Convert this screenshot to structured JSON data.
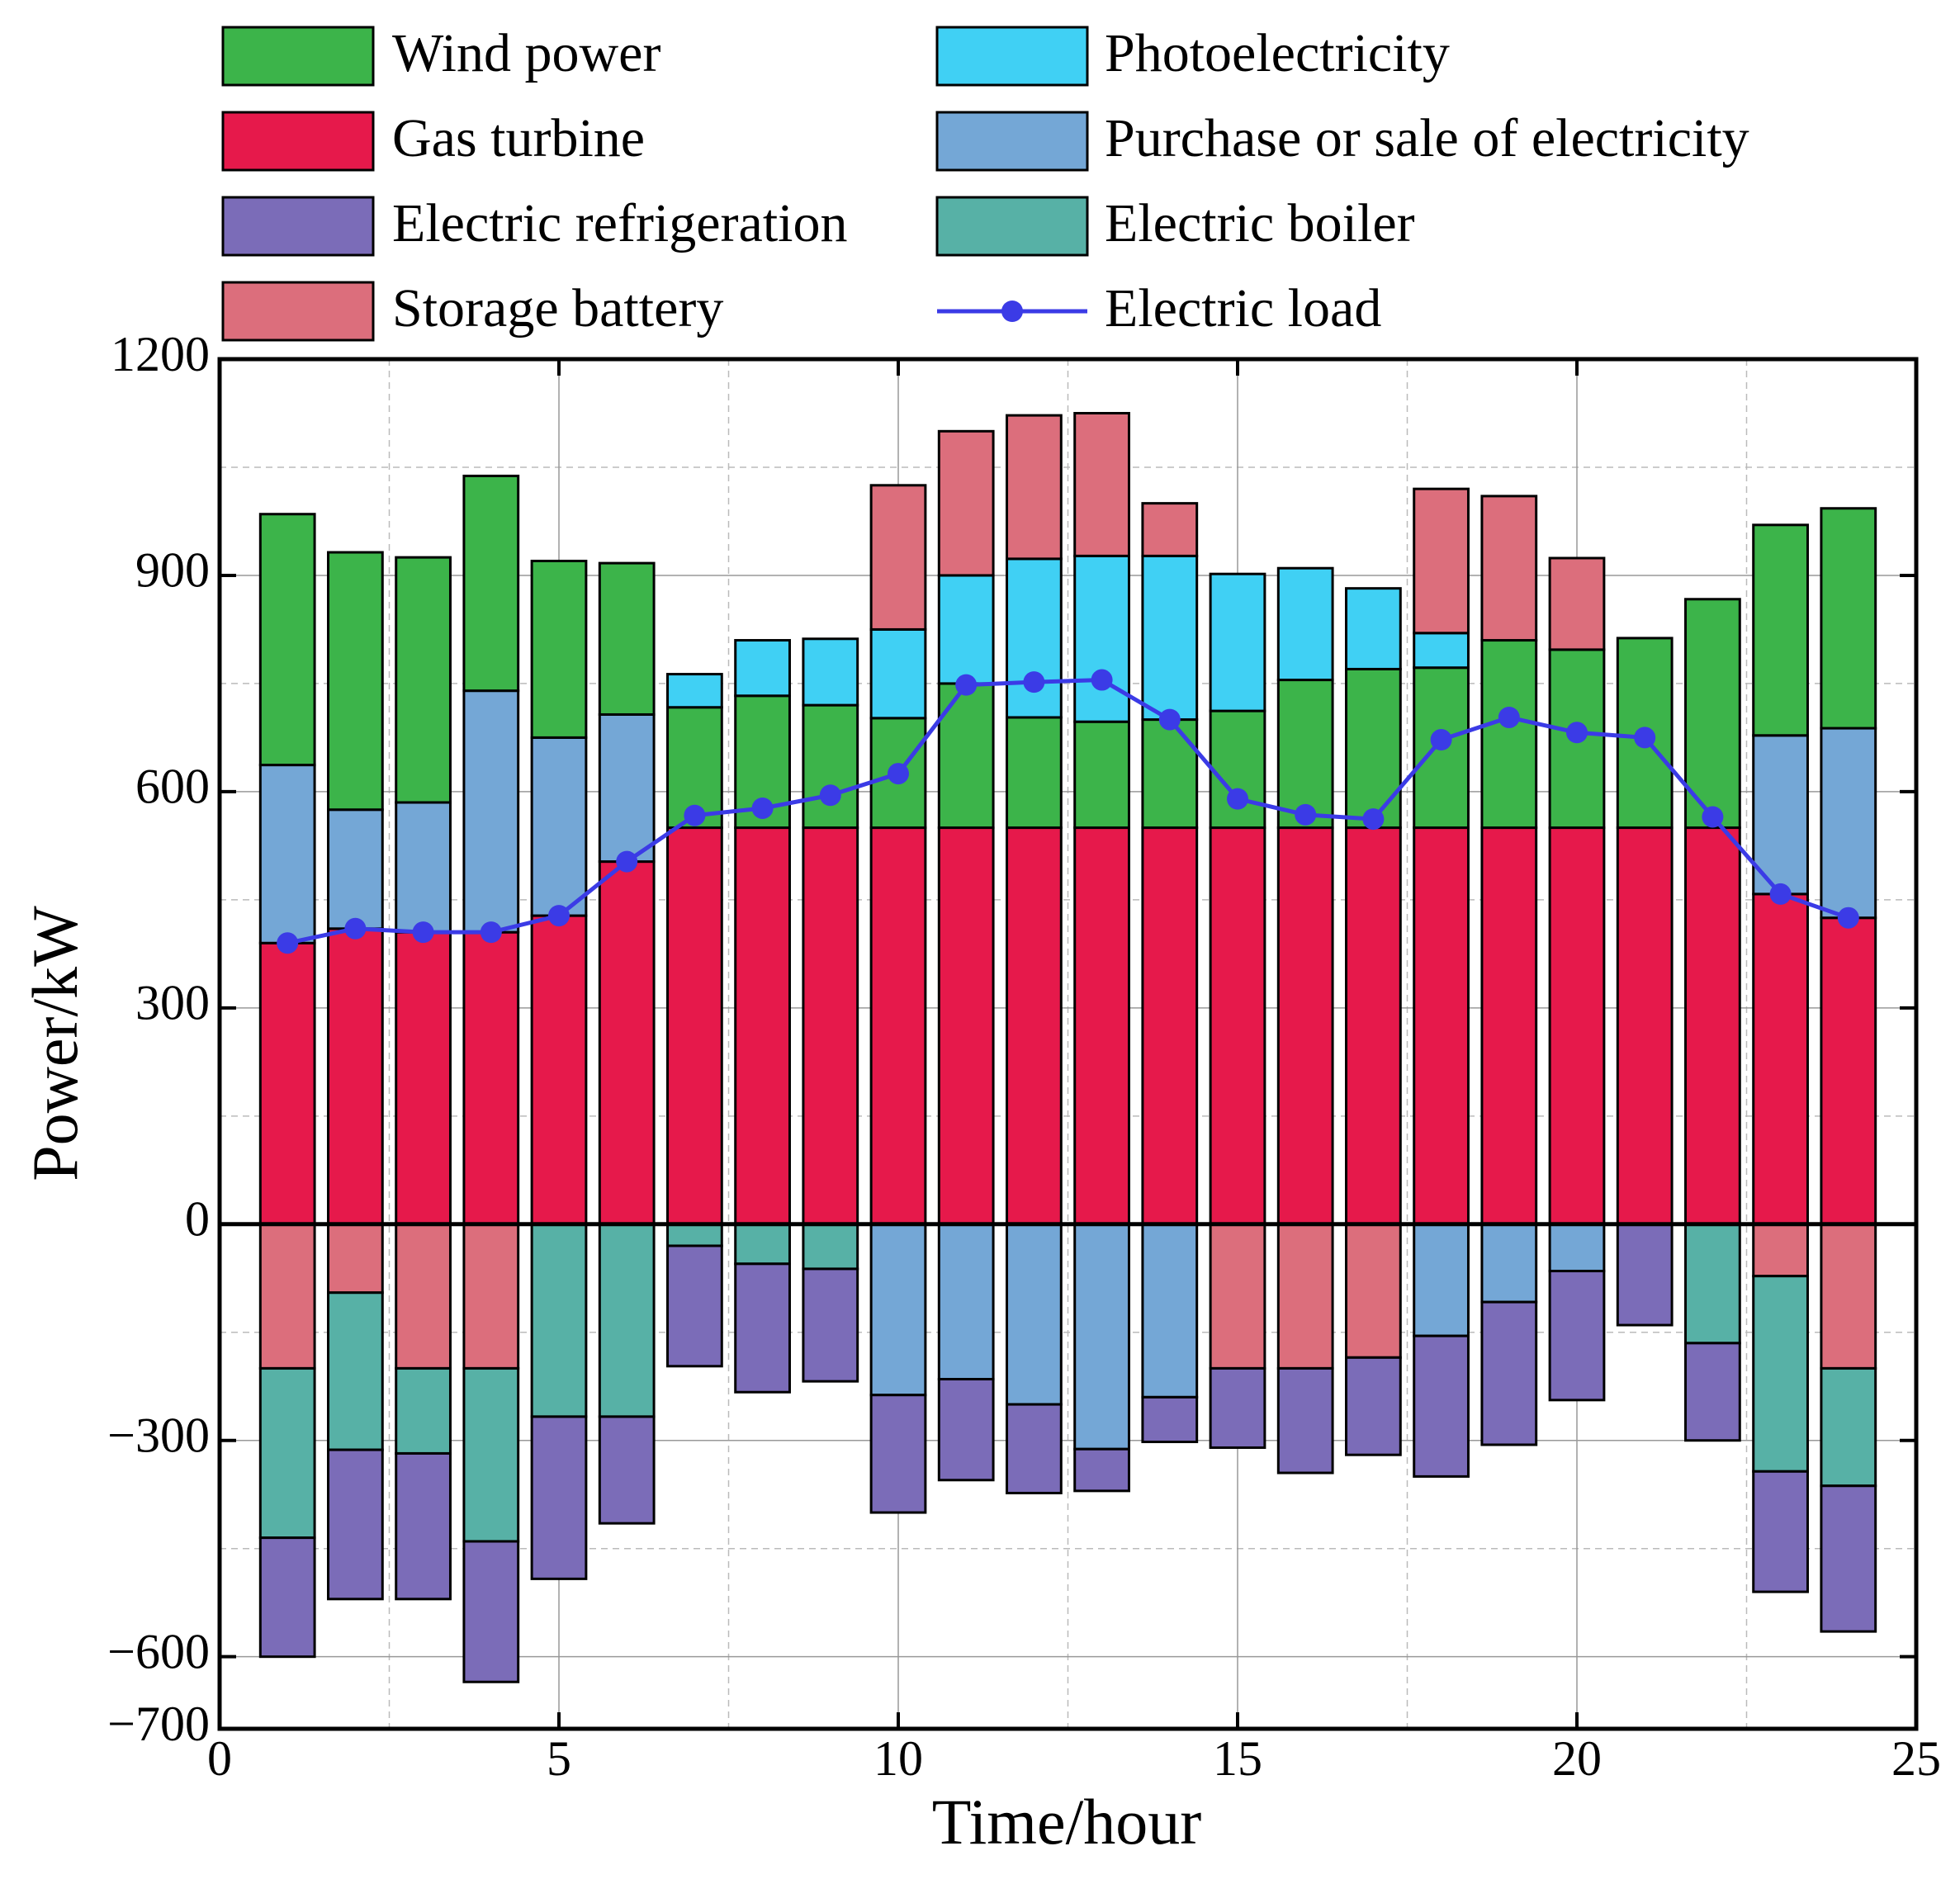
{
  "chart_data": {
    "type": "bar",
    "stacked": true,
    "xlabel": "Time/hour",
    "ylabel": "Power/kW",
    "x": [
      1,
      2,
      3,
      4,
      5,
      6,
      7,
      8,
      9,
      10,
      11,
      12,
      13,
      14,
      15,
      16,
      17,
      18,
      19,
      20,
      21,
      22,
      23,
      24
    ],
    "xlim": [
      0,
      25
    ],
    "xticks": [
      0,
      5,
      10,
      15,
      20,
      25
    ],
    "xminor": [
      2.5,
      7.5,
      12.5,
      17.5,
      22.5
    ],
    "ylim": [
      -700,
      1200
    ],
    "yticks": [
      {
        "value": -700,
        "label": "−700"
      },
      {
        "value": -600,
        "label": "−600"
      },
      {
        "value": -300,
        "label": "−300"
      },
      0,
      300,
      600,
      900,
      1200
    ],
    "yminor": [
      -450,
      -150,
      150,
      450,
      750,
      1050
    ],
    "grid": true,
    "series": [
      {
        "name": "Wind power",
        "color": "#3cb44a",
        "values": [
          348,
          357,
          340,
          298,
          245,
          210,
          167,
          183,
          170,
          152,
          200,
          153,
          147,
          150,
          162,
          205,
          220,
          222,
          260,
          247,
          263,
          317,
          292,
          305
        ]
      },
      {
        "name": "Photoelectricity",
        "color": "#40d0f4",
        "values": [
          0,
          0,
          0,
          0,
          0,
          0,
          46,
          77,
          92,
          123,
          150,
          220,
          230,
          227,
          190,
          155,
          112,
          48,
          0,
          0,
          0,
          0,
          0,
          0
        ]
      },
      {
        "name": "Gas turbine",
        "color": "#e6194b",
        "values": [
          390,
          410,
          405,
          405,
          428,
          503,
          550,
          550,
          550,
          550,
          550,
          550,
          550,
          550,
          550,
          550,
          550,
          550,
          550,
          550,
          550,
          550,
          458,
          425
        ]
      },
      {
        "name": "Purchase or sale of electricity",
        "color": "#74a7d6",
        "values": [
          247,
          165,
          180,
          335,
          247,
          204,
          0,
          0,
          0,
          -237,
          -215,
          -250,
          -312,
          -240,
          0,
          0,
          0,
          -155,
          -108,
          -65,
          0,
          0,
          220,
          263
        ]
      },
      {
        "name": "Electric refrigeration",
        "color": "#7b6cb8",
        "values": [
          -165,
          -207,
          -202,
          -195,
          -225,
          -148,
          -167,
          -178,
          -156,
          -163,
          -140,
          -123,
          -58,
          -62,
          -110,
          -145,
          -135,
          -195,
          -198,
          -179,
          -140,
          -135,
          -167,
          -202
        ]
      },
      {
        "name": "Electric boiler",
        "color": "#57b1a6",
        "values": [
          -235,
          -218,
          -118,
          -240,
          -267,
          -267,
          -30,
          -55,
          -62,
          0,
          0,
          0,
          0,
          0,
          0,
          0,
          0,
          0,
          0,
          0,
          0,
          -165,
          -271,
          -163
        ]
      },
      {
        "name": "Storage battery",
        "color": "#dc6e7c",
        "values": [
          -200,
          -95,
          -200,
          -200,
          0,
          0,
          0,
          0,
          0,
          200,
          200,
          199,
          198,
          73,
          -200,
          -200,
          -185,
          200,
          200,
          127,
          0,
          0,
          -72,
          -200
        ]
      },
      {
        "name": "Electric load",
        "color": "#3b3be6",
        "type": "line",
        "values": [
          390,
          410,
          405,
          405,
          428,
          503,
          567,
          577,
          595,
          625,
          748,
          752,
          755,
          700,
          590,
          568,
          562,
          672,
          703,
          682,
          675,
          565,
          458,
          425
        ]
      }
    ]
  }
}
